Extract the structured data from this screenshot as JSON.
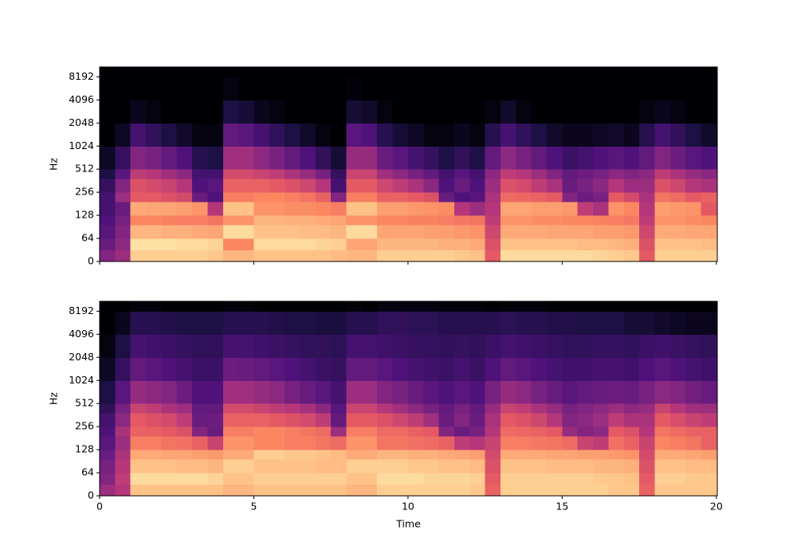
{
  "chart_data": [
    {
      "type": "spectrogram",
      "colormap": "magma",
      "clim": [
        -80,
        0
      ],
      "ylabel": "Hz",
      "yscale": "symlog",
      "linthresh": 64,
      "show_xticklabels": false,
      "xlim": [
        0,
        20.03
      ],
      "xticks": [
        0,
        5,
        10,
        15,
        20
      ],
      "ylim": [
        0,
        11025
      ],
      "yticks": [
        0,
        64,
        128,
        256,
        512,
        1024,
        2048,
        4096,
        8192
      ],
      "x_bins": [
        0,
        0.5,
        1,
        1.5,
        2,
        2.5,
        3,
        3.5,
        4,
        4.5,
        5,
        5.5,
        6,
        6.5,
        7,
        7.5,
        8,
        8.5,
        9,
        9.5,
        10,
        10.5,
        11,
        11.5,
        12,
        12.5,
        13,
        13.5,
        14,
        14.5,
        15,
        15.5,
        16,
        16.5,
        17,
        17.5,
        18,
        18.5,
        19,
        19.5,
        20
      ],
      "y_bins": [
        0,
        32,
        64,
        96,
        128,
        192,
        256,
        384,
        512,
        1024,
        2048,
        4096,
        8192,
        11025
      ],
      "values": [
        [
          -50,
          -45,
          -8,
          -8,
          -8,
          -8,
          -8,
          -9,
          -12,
          -12,
          -10,
          -10,
          -10,
          -10,
          -10,
          -11,
          -12,
          -12,
          -8,
          -8,
          -8,
          -8,
          -8,
          -9,
          -10,
          -30,
          -6,
          -6,
          -6,
          -6,
          -6,
          -6,
          -7,
          -8,
          -9,
          -30,
          -8,
          -8,
          -8,
          -8
        ],
        [
          -55,
          -48,
          -5,
          -5,
          -5,
          -6,
          -6,
          -7,
          -20,
          -20,
          -6,
          -6,
          -6,
          -6,
          -7,
          -8,
          -15,
          -15,
          -12,
          -12,
          -12,
          -12,
          -13,
          -13,
          -14,
          -32,
          -10,
          -10,
          -10,
          -10,
          -10,
          -11,
          -11,
          -12,
          -13,
          -32,
          -10,
          -10,
          -10,
          -11
        ],
        [
          -58,
          -50,
          -12,
          -12,
          -13,
          -13,
          -14,
          -15,
          -6,
          -6,
          -10,
          -10,
          -10,
          -11,
          -11,
          -12,
          -6,
          -6,
          -15,
          -15,
          -15,
          -16,
          -16,
          -17,
          -18,
          -35,
          -14,
          -14,
          -14,
          -15,
          -15,
          -15,
          -16,
          -16,
          -17,
          -35,
          -14,
          -14,
          -15,
          -15
        ],
        [
          -60,
          -52,
          -20,
          -20,
          -21,
          -22,
          -22,
          -24,
          -18,
          -18,
          -12,
          -12,
          -13,
          -13,
          -14,
          -15,
          -18,
          -18,
          -20,
          -20,
          -21,
          -21,
          -22,
          -23,
          -24,
          -38,
          -18,
          -18,
          -19,
          -19,
          -20,
          -20,
          -21,
          -22,
          -23,
          -38,
          -18,
          -18,
          -19,
          -20
        ],
        [
          -62,
          -55,
          -14,
          -15,
          -15,
          -16,
          -18,
          -40,
          -10,
          -10,
          -18,
          -18,
          -19,
          -19,
          -20,
          -22,
          -10,
          -10,
          -16,
          -16,
          -17,
          -18,
          -19,
          -40,
          -45,
          -40,
          -15,
          -15,
          -16,
          -16,
          -17,
          -38,
          -42,
          -18,
          -20,
          -40,
          -16,
          -17,
          -18,
          -30
        ],
        [
          -62,
          -45,
          -30,
          -30,
          -32,
          -34,
          -55,
          -60,
          -22,
          -22,
          -20,
          -20,
          -22,
          -24,
          -28,
          -50,
          -22,
          -22,
          -28,
          -28,
          -30,
          -32,
          -55,
          -60,
          -58,
          -42,
          -26,
          -27,
          -28,
          -30,
          -50,
          -55,
          -52,
          -30,
          -34,
          -42,
          -24,
          -26,
          -30,
          -28
        ],
        [
          -65,
          -50,
          -32,
          -34,
          -36,
          -40,
          -60,
          -58,
          -28,
          -28,
          -28,
          -30,
          -32,
          -35,
          -40,
          -62,
          -30,
          -30,
          -35,
          -38,
          -42,
          -48,
          -60,
          -55,
          -60,
          -45,
          -32,
          -34,
          -38,
          -42,
          -55,
          -52,
          -48,
          -40,
          -45,
          -45,
          -32,
          -35,
          -40,
          -42
        ],
        [
          -70,
          -58,
          -38,
          -40,
          -44,
          -48,
          -62,
          -62,
          -34,
          -34,
          -36,
          -38,
          -42,
          -46,
          -52,
          -65,
          -36,
          -36,
          -44,
          -48,
          -52,
          -56,
          -62,
          -58,
          -62,
          -48,
          -38,
          -40,
          -45,
          -50,
          -56,
          -54,
          -52,
          -48,
          -50,
          -48,
          -38,
          -42,
          -46,
          -48
        ],
        [
          -75,
          -65,
          -50,
          -52,
          -56,
          -60,
          -68,
          -70,
          -44,
          -44,
          -48,
          -52,
          -56,
          -60,
          -66,
          -72,
          -46,
          -46,
          -55,
          -58,
          -62,
          -65,
          -70,
          -66,
          -70,
          -56,
          -48,
          -52,
          -56,
          -60,
          -64,
          -62,
          -60,
          -58,
          -60,
          -56,
          -50,
          -54,
          -58,
          -60
        ],
        [
          -80,
          -75,
          -62,
          -66,
          -70,
          -74,
          -78,
          -78,
          -56,
          -58,
          -62,
          -66,
          -70,
          -74,
          -78,
          -80,
          -58,
          -60,
          -68,
          -72,
          -75,
          -78,
          -78,
          -76,
          -78,
          -68,
          -62,
          -66,
          -70,
          -74,
          -76,
          -76,
          -75,
          -74,
          -76,
          -68,
          -62,
          -66,
          -70,
          -74
        ],
        [
          -80,
          -80,
          -76,
          -78,
          -80,
          -80,
          -80,
          -80,
          -70,
          -72,
          -76,
          -78,
          -80,
          -80,
          -80,
          -80,
          -72,
          -74,
          -78,
          -80,
          -80,
          -80,
          -80,
          -80,
          -80,
          -78,
          -74,
          -78,
          -80,
          -80,
          -80,
          -80,
          -80,
          -80,
          -80,
          -78,
          -76,
          -78,
          -80,
          -80
        ],
        [
          -80,
          -80,
          -80,
          -80,
          -80,
          -80,
          -80,
          -80,
          -78,
          -80,
          -80,
          -80,
          -80,
          -80,
          -80,
          -80,
          -79,
          -80,
          -80,
          -80,
          -80,
          -80,
          -80,
          -80,
          -80,
          -80,
          -80,
          -80,
          -80,
          -80,
          -80,
          -80,
          -80,
          -80,
          -80,
          -80,
          -80,
          -80,
          -80,
          -80
        ],
        [
          -80,
          -80,
          -80,
          -80,
          -80,
          -80,
          -80,
          -80,
          -80,
          -80,
          -80,
          -80,
          -80,
          -80,
          -80,
          -80,
          -80,
          -80,
          -80,
          -80,
          -80,
          -80,
          -80,
          -80,
          -80,
          -80,
          -80,
          -80,
          -80,
          -80,
          -80,
          -80,
          -80,
          -80,
          -80,
          -80,
          -80,
          -80,
          -80,
          -80
        ]
      ]
    },
    {
      "type": "spectrogram",
      "colormap": "magma",
      "clim": [
        -80,
        0
      ],
      "ylabel": "Hz",
      "xlabel": "Time",
      "yscale": "symlog",
      "linthresh": 64,
      "show_xticklabels": true,
      "xlim": [
        0,
        20.03
      ],
      "xticks": [
        0,
        5,
        10,
        15,
        20
      ],
      "ylim": [
        0,
        11025
      ],
      "yticks": [
        0,
        64,
        128,
        256,
        512,
        1024,
        2048,
        4096,
        8192
      ],
      "x_bins": [
        0,
        0.5,
        1,
        1.5,
        2,
        2.5,
        3,
        3.5,
        4,
        4.5,
        5,
        5.5,
        6,
        6.5,
        7,
        7.5,
        8,
        8.5,
        9,
        9.5,
        10,
        10.5,
        11,
        11.5,
        12,
        12.5,
        13,
        13.5,
        14,
        14.5,
        15,
        15.5,
        16,
        16.5,
        17,
        17.5,
        18,
        18.5,
        19,
        19.5,
        20
      ],
      "y_bins": [
        0,
        32,
        64,
        96,
        128,
        192,
        256,
        384,
        512,
        1024,
        2048,
        4096,
        8192,
        11025
      ],
      "values": [
        [
          -45,
          -40,
          -10,
          -10,
          -10,
          -10,
          -10,
          -10,
          -12,
          -12,
          -10,
          -10,
          -10,
          -10,
          -10,
          -10,
          -12,
          -12,
          -8,
          -8,
          -8,
          -8,
          -8,
          -8,
          -9,
          -28,
          -8,
          -8,
          -8,
          -8,
          -8,
          -8,
          -8,
          -9,
          -9,
          -28,
          -9,
          -9,
          -9,
          -9
        ],
        [
          -50,
          -38,
          -6,
          -6,
          -6,
          -6,
          -6,
          -7,
          -10,
          -10,
          -8,
          -8,
          -8,
          -8,
          -8,
          -8,
          -10,
          -10,
          -6,
          -6,
          -6,
          -7,
          -7,
          -7,
          -8,
          -30,
          -8,
          -8,
          -8,
          -8,
          -8,
          -8,
          -9,
          -9,
          -10,
          -30,
          -8,
          -8,
          -9,
          -9
        ],
        [
          -52,
          -40,
          -10,
          -10,
          -10,
          -11,
          -11,
          -12,
          -8,
          -8,
          -10,
          -10,
          -10,
          -10,
          -11,
          -11,
          -8,
          -8,
          -8,
          -8,
          -9,
          -9,
          -10,
          -10,
          -11,
          -32,
          -10,
          -10,
          -10,
          -11,
          -11,
          -11,
          -12,
          -12,
          -13,
          -32,
          -10,
          -10,
          -11,
          -11
        ],
        [
          -55,
          -42,
          -14,
          -14,
          -15,
          -15,
          -16,
          -17,
          -14,
          -14,
          -8,
          -8,
          -9,
          -9,
          -10,
          -11,
          -14,
          -14,
          -12,
          -12,
          -13,
          -13,
          -14,
          -15,
          -16,
          -34,
          -14,
          -14,
          -14,
          -15,
          -15,
          -16,
          -16,
          -17,
          -18,
          -34,
          -14,
          -14,
          -15,
          -16
        ],
        [
          -58,
          -45,
          -22,
          -22,
          -24,
          -25,
          -28,
          -36,
          -18,
          -18,
          -20,
          -20,
          -22,
          -22,
          -24,
          -26,
          -18,
          -18,
          -24,
          -24,
          -25,
          -26,
          -28,
          -38,
          -40,
          -36,
          -22,
          -22,
          -23,
          -24,
          -26,
          -36,
          -38,
          -25,
          -28,
          -36,
          -20,
          -22,
          -24,
          -28
        ],
        [
          -60,
          -42,
          -28,
          -28,
          -30,
          -32,
          -50,
          -55,
          -22,
          -22,
          -20,
          -20,
          -22,
          -24,
          -26,
          -45,
          -22,
          -22,
          -26,
          -26,
          -28,
          -30,
          -50,
          -55,
          -52,
          -40,
          -26,
          -27,
          -28,
          -30,
          -46,
          -50,
          -48,
          -30,
          -32,
          -40,
          -24,
          -26,
          -28,
          -28
        ],
        [
          -62,
          -48,
          -30,
          -32,
          -34,
          -38,
          -55,
          -54,
          -28,
          -28,
          -28,
          -30,
          -32,
          -34,
          -38,
          -56,
          -30,
          -30,
          -32,
          -35,
          -38,
          -44,
          -55,
          -50,
          -55,
          -42,
          -30,
          -32,
          -35,
          -40,
          -50,
          -48,
          -45,
          -38,
          -42,
          -42,
          -30,
          -33,
          -36,
          -38
        ],
        [
          -66,
          -52,
          -36,
          -38,
          -42,
          -45,
          -56,
          -56,
          -34,
          -34,
          -36,
          -38,
          -40,
          -43,
          -48,
          -58,
          -36,
          -36,
          -40,
          -44,
          -48,
          -52,
          -56,
          -52,
          -56,
          -46,
          -36,
          -38,
          -42,
          -46,
          -52,
          -50,
          -48,
          -45,
          -48,
          -46,
          -36,
          -40,
          -44,
          -45
        ],
        [
          -70,
          -58,
          -46,
          -48,
          -50,
          -54,
          -60,
          -60,
          -44,
          -44,
          -46,
          -48,
          -52,
          -55,
          -58,
          -62,
          -45,
          -45,
          -50,
          -52,
          -55,
          -58,
          -60,
          -58,
          -60,
          -52,
          -46,
          -48,
          -52,
          -55,
          -58,
          -56,
          -55,
          -54,
          -55,
          -52,
          -48,
          -50,
          -53,
          -55
        ],
        [
          -75,
          -65,
          -56,
          -58,
          -60,
          -62,
          -64,
          -64,
          -54,
          -55,
          -56,
          -58,
          -60,
          -62,
          -64,
          -65,
          -56,
          -56,
          -58,
          -60,
          -62,
          -63,
          -64,
          -62,
          -64,
          -60,
          -56,
          -58,
          -60,
          -62,
          -63,
          -63,
          -62,
          -62,
          -63,
          -60,
          -58,
          -60,
          -62,
          -63
        ],
        [
          -78,
          -70,
          -62,
          -63,
          -64,
          -65,
          -66,
          -66,
          -62,
          -62,
          -63,
          -64,
          -65,
          -66,
          -66,
          -67,
          -62,
          -62,
          -63,
          -64,
          -65,
          -65,
          -66,
          -65,
          -66,
          -64,
          -62,
          -63,
          -64,
          -65,
          -66,
          -66,
          -65,
          -65,
          -66,
          -64,
          -63,
          -64,
          -65,
          -66
        ],
        [
          -80,
          -76,
          -68,
          -68,
          -69,
          -70,
          -70,
          -70,
          -68,
          -68,
          -68,
          -69,
          -70,
          -70,
          -71,
          -71,
          -68,
          -68,
          -66,
          -66,
          -67,
          -67,
          -68,
          -68,
          -68,
          -68,
          -67,
          -68,
          -68,
          -69,
          -69,
          -70,
          -70,
          -70,
          -72,
          -72,
          -74,
          -75,
          -76,
          -76
        ],
        [
          -80,
          -80,
          -79,
          -79,
          -80,
          -80,
          -80,
          -80,
          -79,
          -79,
          -80,
          -80,
          -80,
          -80,
          -80,
          -80,
          -79,
          -80,
          -78,
          -78,
          -78,
          -78,
          -79,
          -79,
          -79,
          -80,
          -79,
          -79,
          -79,
          -80,
          -80,
          -80,
          -80,
          -80,
          -80,
          -80,
          -80,
          -80,
          -80,
          -80
        ]
      ]
    }
  ]
}
